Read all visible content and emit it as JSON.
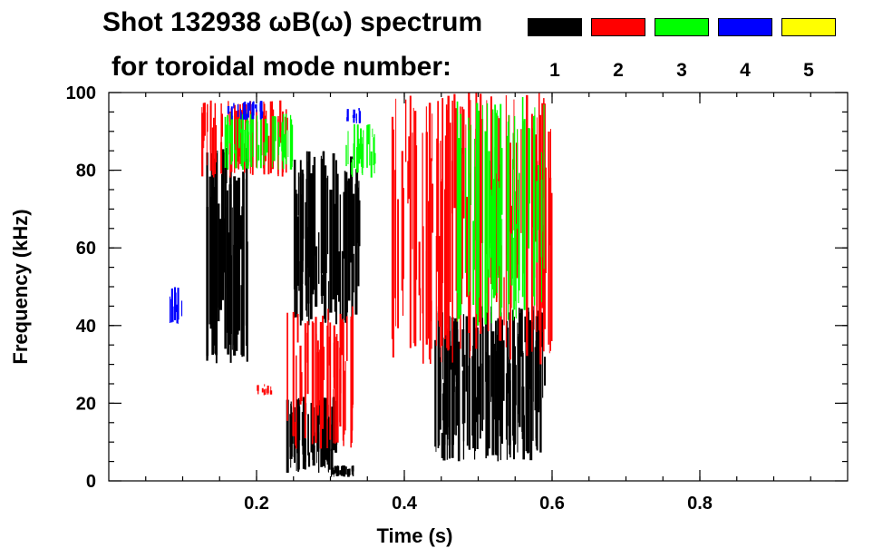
{
  "title": {
    "line1": "Shot 132938 ωB(ω) spectrum",
    "line2": "for toroidal mode number:"
  },
  "legend": [
    {
      "label": "1",
      "color": "#000000"
    },
    {
      "label": "2",
      "color": "#ff0000"
    },
    {
      "label": "3",
      "color": "#00ff00"
    },
    {
      "label": "4",
      "color": "#0000ff"
    },
    {
      "label": "5",
      "color": "#ffff00"
    }
  ],
  "chart_data": {
    "type": "heatmap",
    "title": "Shot 132938 ωB(ω) spectrum for toroidal mode number:",
    "xlabel": "Time (s)",
    "ylabel": "Frequency (kHz)",
    "xlim": [
      0.0,
      1.0
    ],
    "ylim": [
      0,
      100
    ],
    "x_ticks": [
      0.2,
      0.4,
      0.6,
      0.8
    ],
    "x_tick_labels": [
      "0.2",
      "0.4",
      "0.6",
      "0.8"
    ],
    "y_ticks": [
      0,
      20,
      40,
      60,
      80,
      100
    ],
    "y_tick_labels": [
      "0",
      "20",
      "40",
      "60",
      "80",
      "100"
    ],
    "legend_placement": "top",
    "mode_colors": {
      "1": "#000000",
      "2": "#ff0000",
      "3": "#00ff00",
      "4": "#0000ff",
      "5": "#ffff00"
    },
    "regions": [
      {
        "mode": 1,
        "t": [
          0.13,
          0.19
        ],
        "f": [
          30,
          87
        ]
      },
      {
        "mode": 1,
        "t": [
          0.24,
          0.31
        ],
        "f": [
          2,
          22
        ]
      },
      {
        "mode": 1,
        "t": [
          0.25,
          0.34
        ],
        "f": [
          40,
          85
        ]
      },
      {
        "mode": 1,
        "t": [
          0.3,
          0.33
        ],
        "f": [
          1,
          4
        ]
      },
      {
        "mode": 1,
        "t": [
          0.44,
          0.59
        ],
        "f": [
          5,
          45
        ]
      },
      {
        "mode": 2,
        "t": [
          0.12,
          0.24
        ],
        "f": [
          78,
          98
        ]
      },
      {
        "mode": 2,
        "t": [
          0.24,
          0.33
        ],
        "f": [
          8,
          45
        ]
      },
      {
        "mode": 2,
        "t": [
          0.38,
          0.6
        ],
        "f": [
          30,
          100
        ]
      },
      {
        "mode": 2,
        "t": [
          0.2,
          0.22
        ],
        "f": [
          22,
          25
        ]
      },
      {
        "mode": 3,
        "t": [
          0.15,
          0.25
        ],
        "f": [
          80,
          95
        ]
      },
      {
        "mode": 3,
        "t": [
          0.32,
          0.36
        ],
        "f": [
          78,
          92
        ]
      },
      {
        "mode": 3,
        "t": [
          0.47,
          0.59
        ],
        "f": [
          40,
          100
        ]
      },
      {
        "mode": 4,
        "t": [
          0.08,
          0.1
        ],
        "f": [
          40,
          50
        ]
      },
      {
        "mode": 4,
        "t": [
          0.16,
          0.21
        ],
        "f": [
          93,
          98
        ]
      },
      {
        "mode": 4,
        "t": [
          0.32,
          0.34
        ],
        "f": [
          92,
          96
        ]
      }
    ]
  }
}
